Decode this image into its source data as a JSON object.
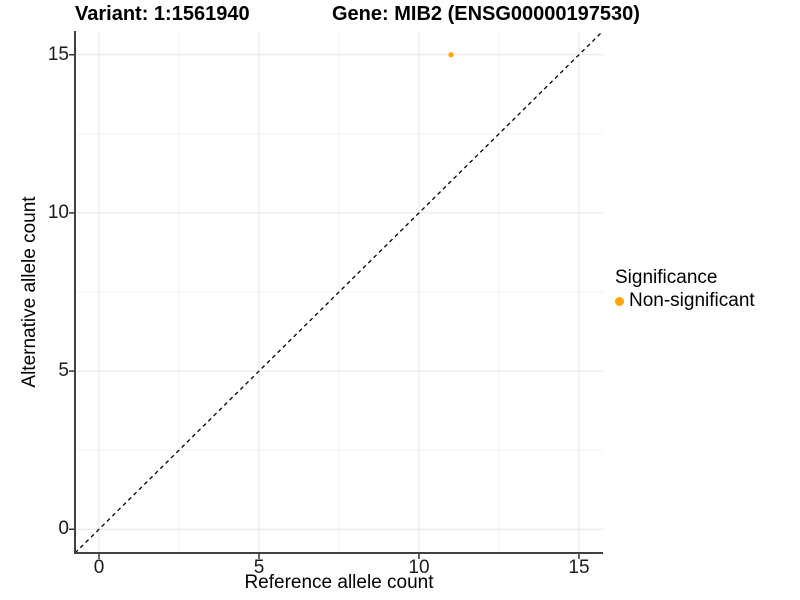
{
  "chart_data": {
    "type": "scatter",
    "title_left": "Variant: 1:1561940",
    "title_right": "Gene: MIB2 (ENSG00000197530)",
    "xlabel": "Reference allele count",
    "ylabel": "Alternative allele count",
    "xlim": [
      -0.75,
      15.75
    ],
    "ylim": [
      -0.75,
      15.75
    ],
    "x_ticks": [
      {
        "value": 0,
        "label": "0"
      },
      {
        "value": 5,
        "label": "5"
      },
      {
        "value": 10,
        "label": "10"
      },
      {
        "value": 15,
        "label": "15"
      }
    ],
    "y_ticks": [
      {
        "value": 0,
        "label": "0"
      },
      {
        "value": 5,
        "label": "5"
      },
      {
        "value": 10,
        "label": "10"
      },
      {
        "value": 15,
        "label": "15"
      }
    ],
    "x_minor_ticks": [
      2.5,
      7.5,
      12.5
    ],
    "y_minor_ticks": [
      2.5,
      7.5,
      12.5
    ],
    "grid": true,
    "series": [
      {
        "name": "Non-significant",
        "color": "#FFA500",
        "points": [
          {
            "x": 11,
            "y": 15
          }
        ]
      }
    ],
    "reference_line": {
      "type": "abline",
      "slope": 1,
      "intercept": 0,
      "style": "dashed",
      "color": "#000000"
    },
    "legend": {
      "position": "right",
      "title": "Significance",
      "entries": [
        {
          "label": "Non-significant",
          "color": "#FFA500",
          "marker": "circle"
        }
      ]
    }
  },
  "colors": {
    "point_orange": "#FFA500",
    "grid_major": "#E6E6E6",
    "grid_minor": "#F2F2F2",
    "axis_line": "#404040",
    "tick_mark": "#333333",
    "tick_text": "#1A1A1A",
    "title_text": "#000000",
    "background": "#FFFFFF",
    "dashed_line": "#000000"
  }
}
